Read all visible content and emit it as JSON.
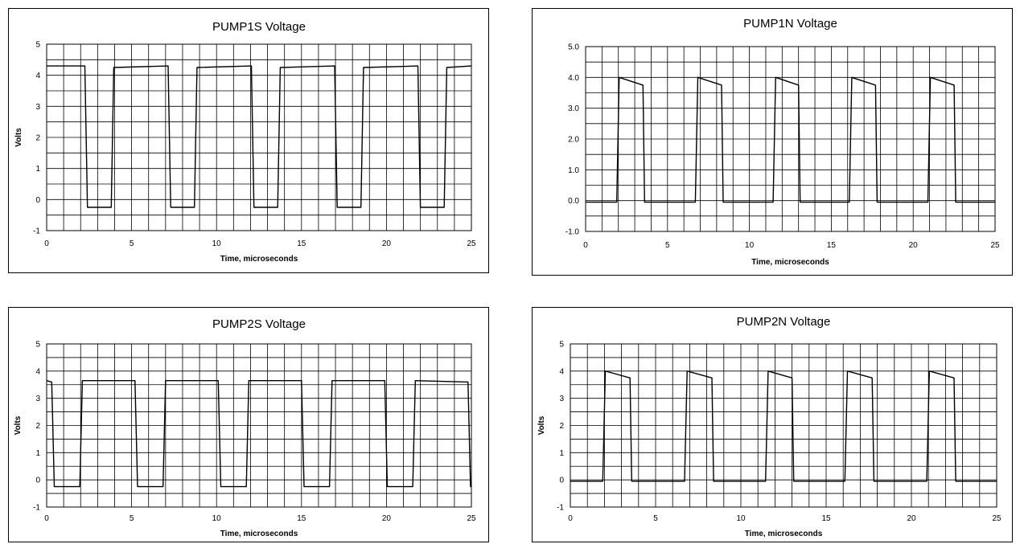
{
  "chart_data": [
    {
      "type": "line",
      "title": "PUMP1S Voltage",
      "xlabel": "Time, microseconds",
      "ylabel": "Volts",
      "xlim": [
        0,
        25
      ],
      "ylim": [
        -1,
        5
      ],
      "grid": true,
      "x_ticks": [
        "0",
        "5",
        "10",
        "15",
        "20",
        "25"
      ],
      "y_ticks": [
        "-1",
        "0",
        "1",
        "2",
        "3",
        "4",
        "5"
      ],
      "series": [
        {
          "x": [
            0,
            2.25,
            2.4,
            3.8,
            3.95,
            7.15,
            7.3,
            8.7,
            8.85,
            12.05,
            12.2,
            13.6,
            13.75,
            16.95,
            17.1,
            18.5,
            18.65,
            21.85,
            22.0,
            23.4,
            23.55,
            25
          ],
          "y": [
            4.3,
            4.3,
            -0.25,
            -0.25,
            4.25,
            4.3,
            -0.25,
            -0.25,
            4.25,
            4.3,
            -0.25,
            -0.25,
            4.25,
            4.3,
            -0.25,
            -0.25,
            4.25,
            4.3,
            -0.25,
            -0.25,
            4.25,
            4.3
          ]
        }
      ]
    },
    {
      "type": "line",
      "title": "PUMP1N Voltage",
      "xlabel": "Time, microseconds",
      "ylabel": "",
      "xlim": [
        0,
        25
      ],
      "ylim": [
        -1,
        5
      ],
      "grid": true,
      "x_ticks": [
        "0",
        "5",
        "10",
        "15",
        "20",
        "25"
      ],
      "y_ticks": [
        "-1.0",
        "0.0",
        "1.0",
        "2.0",
        "3.0",
        "4.0",
        "5.0"
      ],
      "series": [
        {
          "x": [
            0,
            1.9,
            2.05,
            3.5,
            3.6,
            6.7,
            6.85,
            8.3,
            8.4,
            11.45,
            11.6,
            13.0,
            13.1,
            16.1,
            16.25,
            17.7,
            17.8,
            20.9,
            21.05,
            22.5,
            22.6,
            25
          ],
          "y": [
            -0.05,
            -0.05,
            4.0,
            3.75,
            -0.05,
            -0.05,
            4.0,
            3.75,
            -0.05,
            -0.05,
            4.0,
            3.75,
            -0.05,
            -0.05,
            4.0,
            3.75,
            -0.05,
            -0.05,
            4.0,
            3.75,
            -0.05,
            -0.05
          ]
        }
      ]
    },
    {
      "type": "line",
      "title": "PUMP2S Voltage",
      "xlabel": "Time, microseconds",
      "ylabel": "Volts",
      "xlim": [
        0,
        25
      ],
      "ylim": [
        -1,
        5
      ],
      "grid": true,
      "x_ticks": [
        "0",
        "5",
        "10",
        "15",
        "20",
        "25"
      ],
      "y_ticks": [
        "-1",
        "0",
        "1",
        "2",
        "3",
        "4",
        "5"
      ],
      "series": [
        {
          "x": [
            0,
            0.3,
            0.45,
            1.95,
            2.1,
            5.2,
            5.35,
            6.85,
            7.0,
            10.1,
            10.25,
            11.75,
            11.9,
            15.0,
            15.15,
            16.65,
            16.8,
            19.9,
            20.05,
            21.55,
            21.7,
            24.8,
            24.95,
            25
          ],
          "y": [
            3.65,
            3.6,
            -0.25,
            -0.25,
            3.65,
            3.65,
            -0.25,
            -0.25,
            3.65,
            3.65,
            -0.25,
            -0.25,
            3.65,
            3.65,
            -0.25,
            -0.25,
            3.65,
            3.65,
            -0.25,
            -0.25,
            3.65,
            3.6,
            -0.25,
            -0.25
          ]
        }
      ]
    },
    {
      "type": "line",
      "title": "PUMP2N Voltage",
      "xlabel": "Time, microseconds",
      "ylabel": "Volts",
      "xlim": [
        0,
        25
      ],
      "ylim": [
        -1,
        5
      ],
      "grid": true,
      "x_ticks": [
        "0",
        "5",
        "10",
        "15",
        "20",
        "25"
      ],
      "y_ticks": [
        "-1",
        "0",
        "1",
        "2",
        "3",
        "4",
        "5"
      ],
      "series": [
        {
          "x": [
            0,
            1.9,
            2.05,
            3.5,
            3.6,
            6.7,
            6.85,
            8.3,
            8.4,
            11.45,
            11.6,
            13.0,
            13.1,
            16.1,
            16.25,
            17.7,
            17.8,
            20.9,
            21.05,
            22.5,
            22.6,
            25
          ],
          "y": [
            -0.05,
            -0.05,
            4.0,
            3.75,
            -0.05,
            -0.05,
            4.0,
            3.75,
            -0.05,
            -0.05,
            4.0,
            3.75,
            -0.05,
            -0.05,
            4.0,
            3.75,
            -0.05,
            -0.05,
            4.0,
            3.75,
            -0.05,
            -0.05
          ]
        }
      ]
    }
  ]
}
